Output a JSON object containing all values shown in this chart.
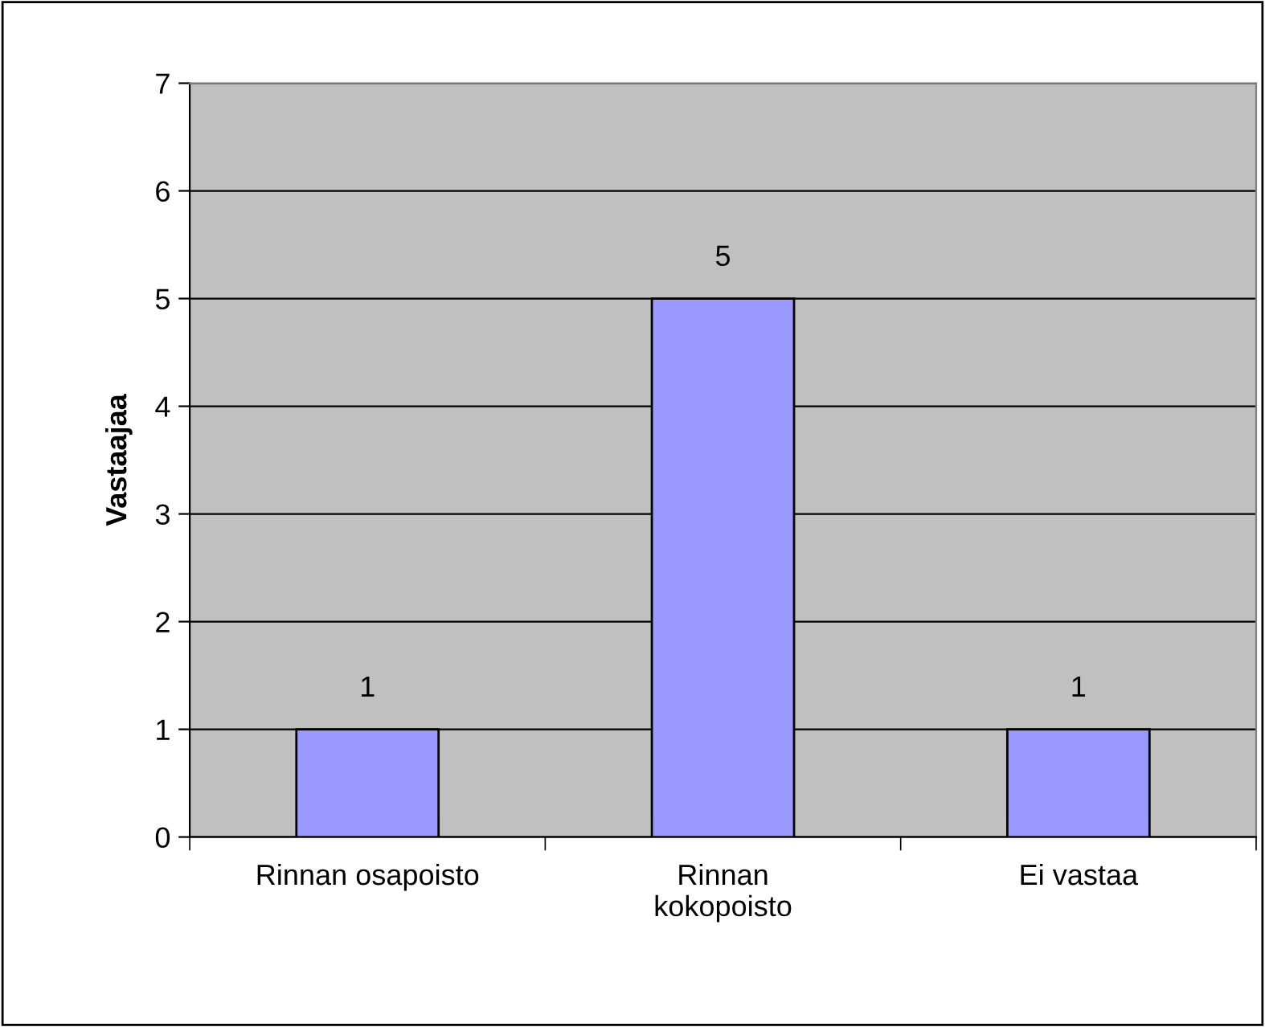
{
  "chart_data": {
    "type": "bar",
    "ylabel": "Vastaajaa",
    "categories": [
      "Rinnan osapoisto",
      "Rinnan\nkokopoisto",
      "Ei vastaa"
    ],
    "values": [
      1,
      5,
      1
    ],
    "color": "#9999ff",
    "ylim": [
      0,
      7
    ],
    "yticks": [
      0,
      1,
      2,
      3,
      4,
      5,
      6,
      7
    ],
    "grid": "y",
    "data_labels": true
  }
}
